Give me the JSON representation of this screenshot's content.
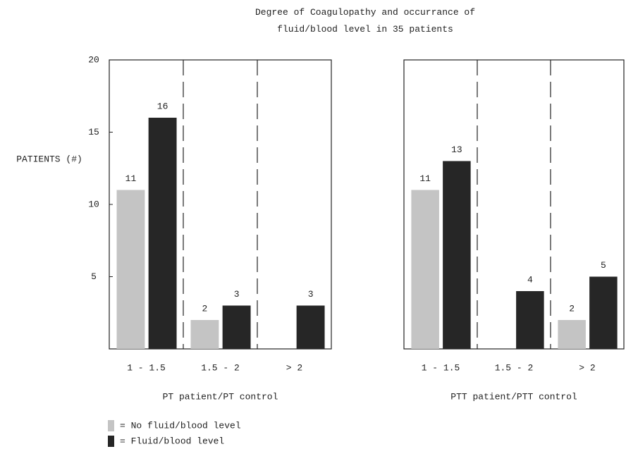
{
  "title": "Degree of Coagulopathy and occurrance of\nfluid/blood level in 35 patients",
  "chart_data": [
    {
      "type": "bar",
      "ylabel": "PATIENTS (#)",
      "xlabel": "PT patient/PT control",
      "categories": [
        "1 - 1.5",
        "1.5 - 2",
        "> 2"
      ],
      "ylim": [
        0,
        20
      ],
      "yticks": [
        5,
        10,
        15,
        20
      ],
      "series": [
        {
          "name": "= No fluid/blood level",
          "color": "#c4c4c4",
          "values": [
            11,
            2,
            null
          ]
        },
        {
          "name": "= Fluid/blood level",
          "color": "#262626",
          "values": [
            16,
            3,
            3
          ]
        }
      ]
    },
    {
      "type": "bar",
      "xlabel": "PTT patient/PTT control",
      "categories": [
        "1 - 1.5",
        "1.5 - 2",
        "> 2"
      ],
      "ylim": [
        0,
        20
      ],
      "series": [
        {
          "color": "#c4c4c4",
          "values": [
            11,
            null,
            2
          ]
        },
        {
          "color": "#262626",
          "values": [
            13,
            4,
            5
          ]
        }
      ]
    }
  ]
}
